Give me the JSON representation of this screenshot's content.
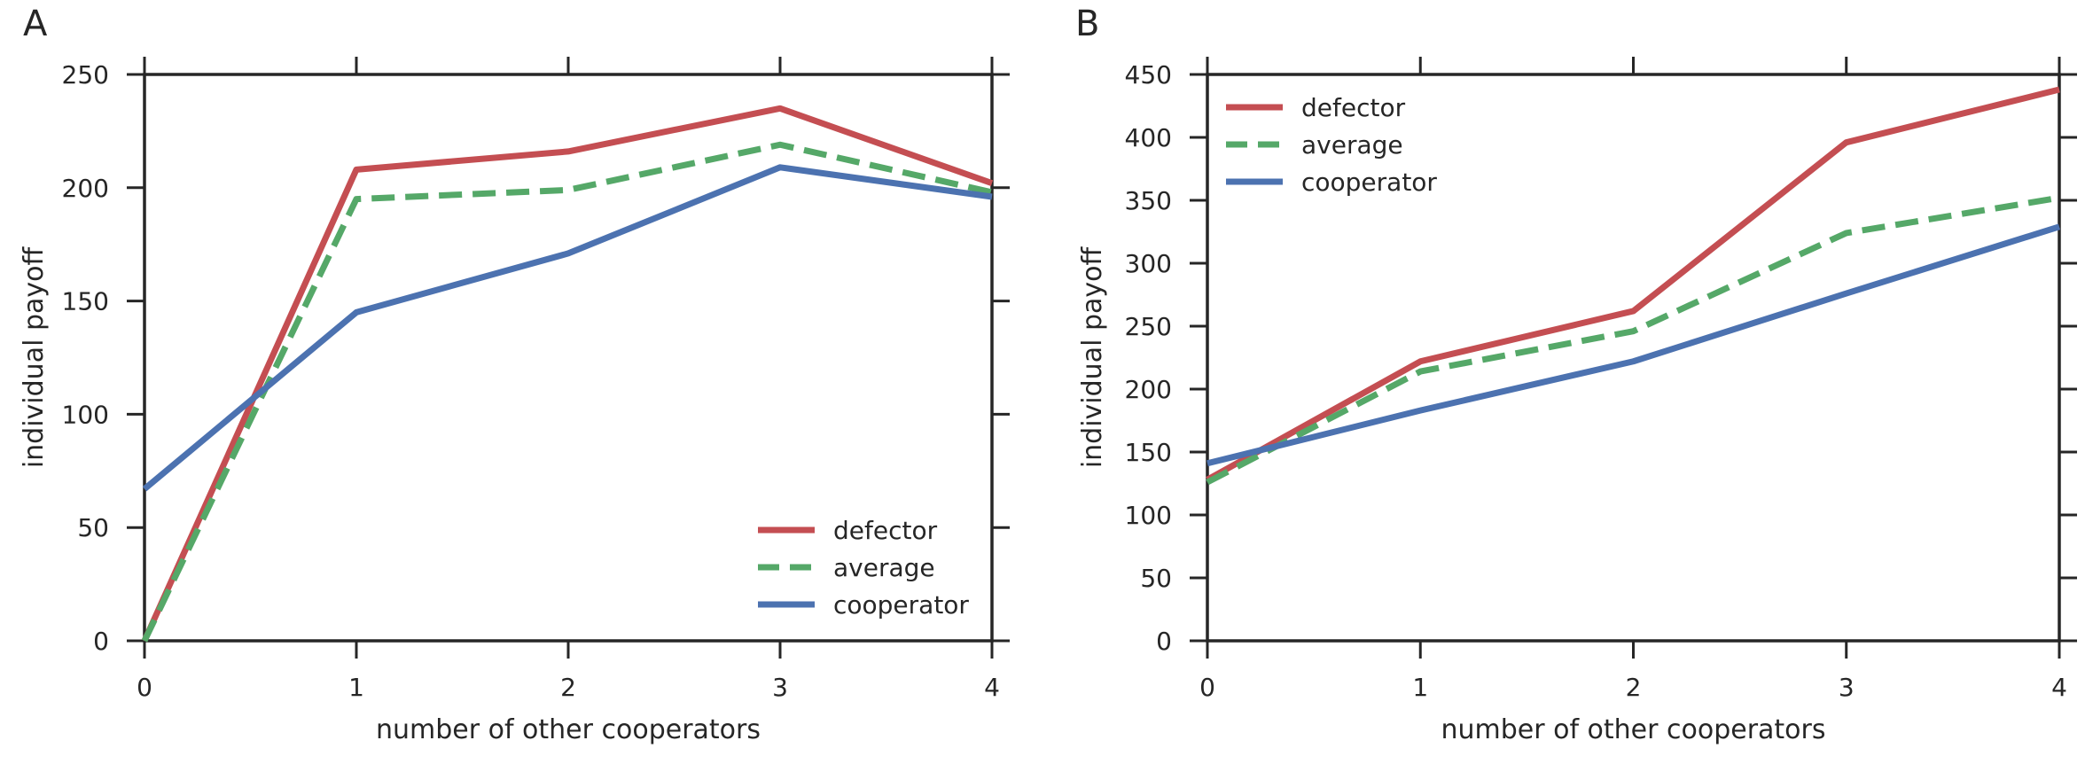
{
  "chart_data": [
    {
      "panel_label": "A",
      "type": "line",
      "xlabel": "number of other cooperators",
      "ylabel": "individual payoff",
      "x": [
        0,
        1,
        2,
        3,
        4
      ],
      "xlim": [
        0,
        4
      ],
      "ylim": [
        0,
        250
      ],
      "xticks": [
        "0",
        "1",
        "2",
        "3",
        "4"
      ],
      "yticks": [
        "0",
        "50",
        "100",
        "150",
        "200",
        "250"
      ],
      "grid": false,
      "legend_position": "lower-right",
      "series": [
        {
          "name": "defector",
          "values": [
            0,
            208,
            216,
            235,
            202
          ],
          "color": "#c44e52",
          "dashed": false
        },
        {
          "name": "average",
          "values": [
            0,
            195,
            199,
            219,
            198
          ],
          "color": "#55a868",
          "dashed": true
        },
        {
          "name": "cooperator",
          "values": [
            67,
            145,
            171,
            209,
            196
          ],
          "color": "#4c72b0",
          "dashed": false
        }
      ]
    },
    {
      "panel_label": "B",
      "type": "line",
      "xlabel": "number of other cooperators",
      "ylabel": "individual payoff",
      "x": [
        0,
        1,
        2,
        3,
        4
      ],
      "xlim": [
        0,
        4
      ],
      "ylim": [
        0,
        450
      ],
      "xticks": [
        "0",
        "1",
        "2",
        "3",
        "4"
      ],
      "yticks": [
        "0",
        "50",
        "100",
        "150",
        "200",
        "250",
        "300",
        "350",
        "400",
        "450"
      ],
      "grid": false,
      "legend_position": "upper-left",
      "series": [
        {
          "name": "defector",
          "values": [
            128,
            222,
            262,
            396,
            438
          ],
          "color": "#c44e52",
          "dashed": false
        },
        {
          "name": "average",
          "values": [
            126,
            214,
            246,
            324,
            352
          ],
          "color": "#55a868",
          "dashed": true
        },
        {
          "name": "cooperator",
          "values": [
            141,
            183,
            222,
            276,
            329
          ],
          "color": "#4c72b0",
          "dashed": false
        }
      ]
    }
  ]
}
